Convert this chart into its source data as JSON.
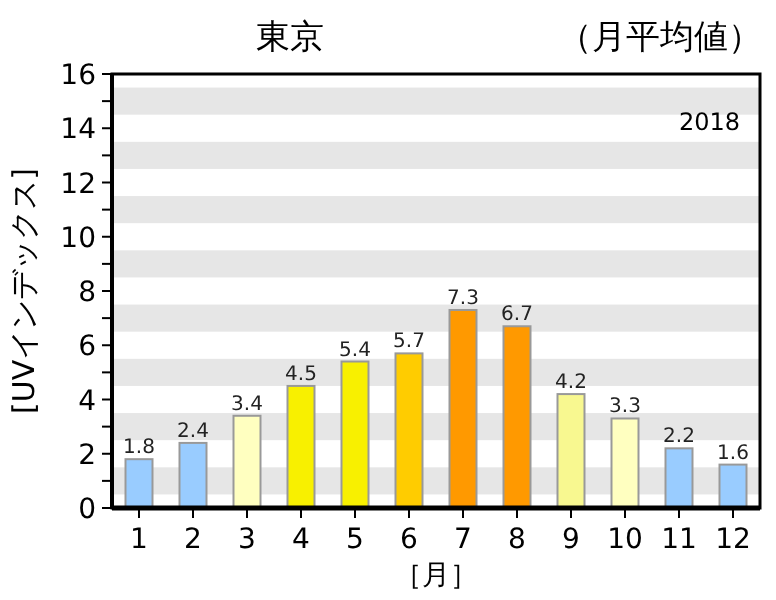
{
  "chart_data": {
    "type": "bar",
    "title": "東京",
    "subtitle": "（月平均値）",
    "xlabel": "［月］",
    "ylabel": "[UVインデックス]",
    "annotations": [
      "2018"
    ],
    "categories": [
      "1",
      "2",
      "3",
      "4",
      "5",
      "6",
      "7",
      "8",
      "9",
      "10",
      "11",
      "12"
    ],
    "values": [
      1.8,
      2.4,
      3.4,
      4.5,
      5.4,
      5.7,
      7.3,
      6.7,
      4.2,
      3.3,
      2.2,
      1.6
    ],
    "colors": [
      "#99ccff",
      "#99ccff",
      "#ffffc0",
      "#f8f000",
      "#f8f000",
      "#ffcc00",
      "#ff9900",
      "#ff9900",
      "#f8f890",
      "#ffffc0",
      "#99ccff",
      "#99ccff"
    ],
    "data_labels": true,
    "ylim": [
      0,
      16
    ],
    "yticks": [
      0,
      {
        "value": 1,
        "label": null
      },
      2,
      {
        "value": 3,
        "label": null
      },
      4,
      {
        "value": 5,
        "label": null
      },
      6,
      {
        "value": 7,
        "label": null
      },
      8,
      {
        "value": 9,
        "label": null
      },
      10,
      {
        "value": 11,
        "label": null
      },
      12,
      {
        "value": 13,
        "label": null
      },
      14,
      {
        "value": 15,
        "label": null
      },
      16
    ],
    "bands": [
      {
        "axis": "y",
        "from": 0.5,
        "to": 1.5,
        "color": "#e6e6e6"
      },
      {
        "axis": "y",
        "from": 2.5,
        "to": 3.5,
        "color": "#e6e6e6"
      },
      {
        "axis": "y",
        "from": 4.5,
        "to": 5.5,
        "color": "#e6e6e6"
      },
      {
        "axis": "y",
        "from": 6.5,
        "to": 7.5,
        "color": "#e6e6e6"
      },
      {
        "axis": "y",
        "from": 8.5,
        "to": 9.5,
        "color": "#e6e6e6"
      },
      {
        "axis": "y",
        "from": 10.5,
        "to": 11.5,
        "color": "#e6e6e6"
      },
      {
        "axis": "y",
        "from": 12.5,
        "to": 13.5,
        "color": "#e6e6e6"
      },
      {
        "axis": "y",
        "from": 14.5,
        "to": 15.5,
        "color": "#e6e6e6"
      }
    ]
  }
}
